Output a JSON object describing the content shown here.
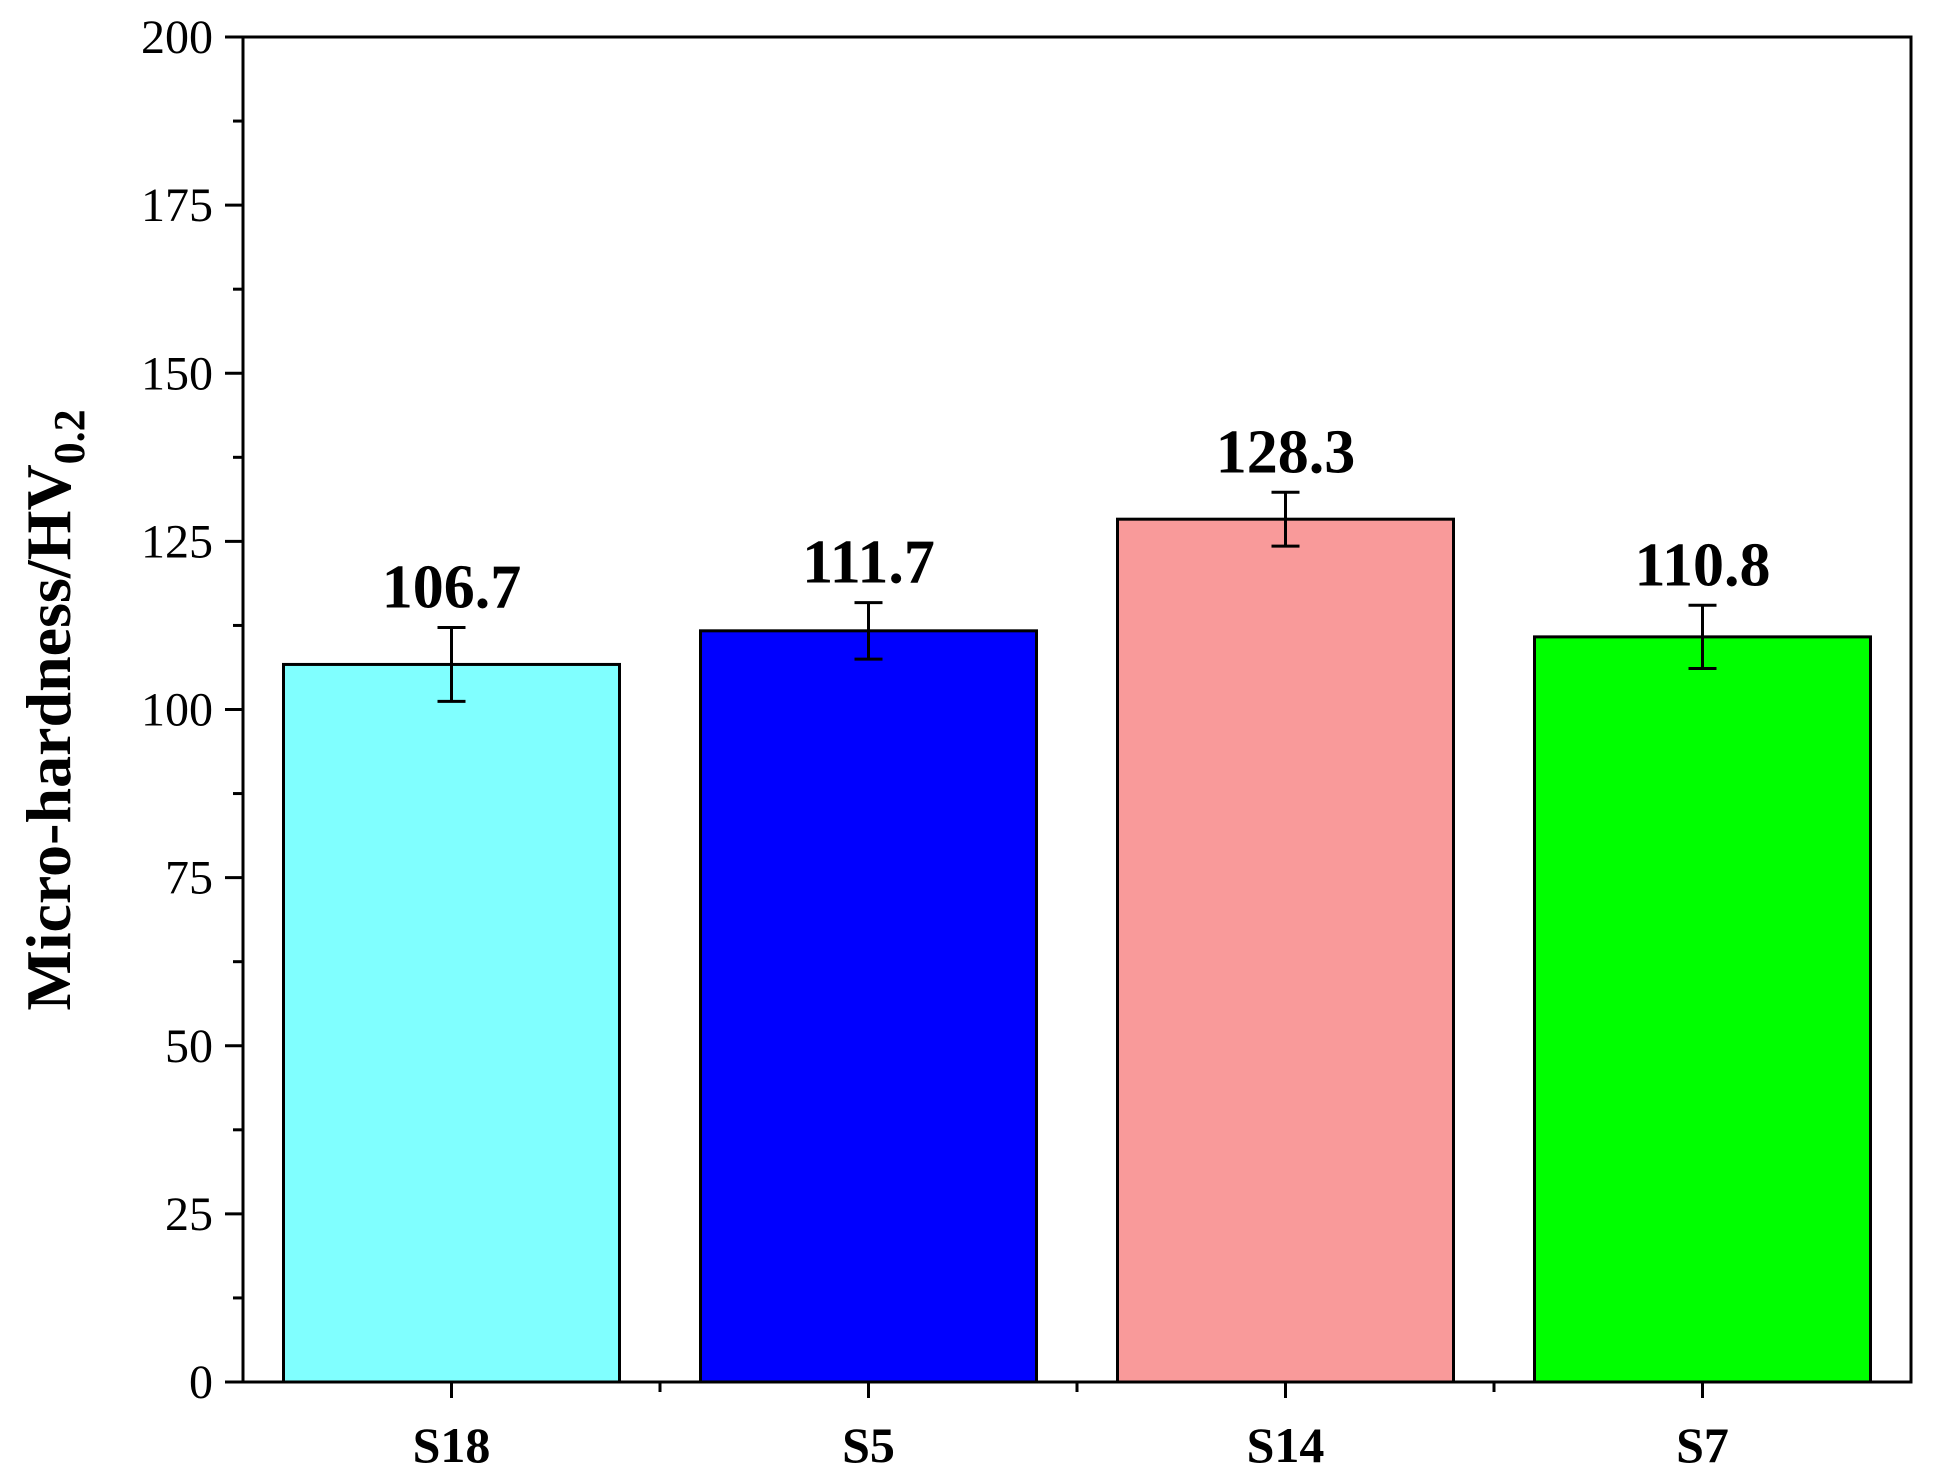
{
  "chart_data": {
    "type": "bar",
    "categories": [
      "S18",
      "S5",
      "S14",
      "S7"
    ],
    "values": [
      106.7,
      111.7,
      128.3,
      110.8
    ],
    "errors": [
      5.5,
      4.2,
      4.0,
      4.7
    ],
    "value_labels": [
      "106.7",
      "111.7",
      "128.3",
      "110.8"
    ],
    "colors": [
      "#80ffff",
      "#0000ff",
      "#f99a9a",
      "#00ff00"
    ],
    "title": "",
    "xlabel": "",
    "ylabel": {
      "main": "Micro-hardness/HV",
      "subscript": "0.2"
    },
    "ylim": [
      0,
      200
    ],
    "yticks": [
      0,
      25,
      50,
      75,
      100,
      125,
      150,
      175,
      200
    ],
    "ytick_labels": [
      "0",
      "25",
      "50",
      "75",
      "100",
      "125",
      "150",
      "175",
      "200"
    ],
    "grid": false,
    "legend": "none"
  }
}
